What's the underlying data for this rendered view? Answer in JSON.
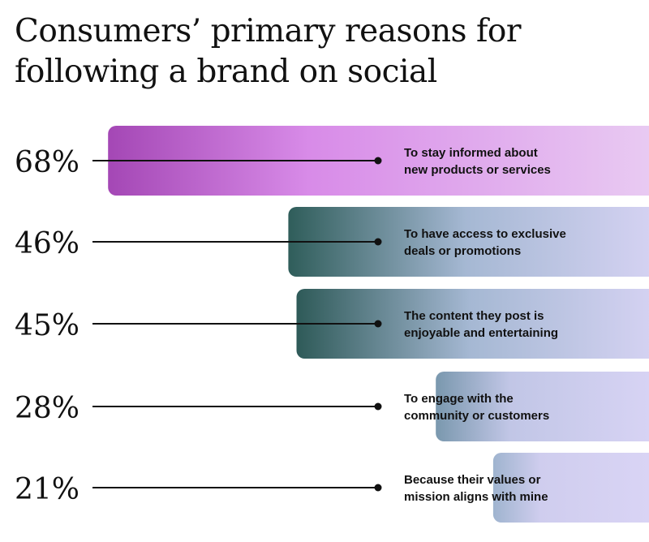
{
  "title": "Consumers’ primary reasons for following a brand on social",
  "chart_data": {
    "type": "bar",
    "title": "Consumers’ primary reasons for following a brand on social",
    "xlabel": "",
    "ylabel": "",
    "orientation": "horizontal",
    "value_format": "percent",
    "categories": [
      [
        "To stay informed about",
        "new products or services"
      ],
      [
        "To have access to exclusive",
        "deals or promotions"
      ],
      [
        "The content they post is",
        "enjoyable and entertaining"
      ],
      [
        "To engage with the",
        "community or customers"
      ],
      [
        "Because their values or",
        "mission aligns with mine"
      ]
    ],
    "values": [
      68,
      46,
      45,
      28,
      21
    ],
    "value_labels": [
      "68%",
      "46%",
      "45%",
      "28%",
      "21%"
    ],
    "colors": {
      "bar_1_start": "#a447b5",
      "bar_1_end": "#e7b7f0",
      "bar_dark_start": "#2f5d5a",
      "bar_light_end": "#dcd6f7",
      "text": "#111111"
    },
    "grid": false,
    "legend": "none"
  }
}
